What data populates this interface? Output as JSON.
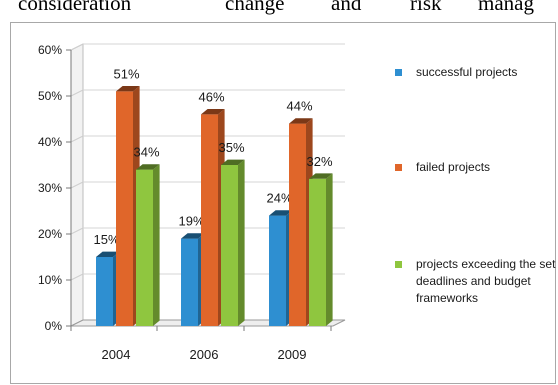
{
  "header_text": {
    "words": [
      "consideration",
      "change",
      "and",
      "risk",
      "manag"
    ]
  },
  "chart_data": {
    "type": "bar",
    "categories": [
      "2004",
      "2006",
      "2009"
    ],
    "series": [
      {
        "name": "successful projects",
        "values": [
          15,
          19,
          24
        ],
        "labels": [
          "15%",
          "19%",
          "24%"
        ],
        "color": "#2e8fd1"
      },
      {
        "name": "failed projects",
        "values": [
          51,
          46,
          44
        ],
        "labels": [
          "51%",
          "46%",
          "44%"
        ],
        "color": "#e0662a"
      },
      {
        "name": "projects exceeding the set deadlines and budget frameworks",
        "values": [
          34,
          35,
          32
        ],
        "labels": [
          "34%",
          "35%",
          "32%"
        ],
        "color": "#8fc63f"
      }
    ],
    "yticks": [
      "0%",
      "10%",
      "20%",
      "30%",
      "40%",
      "50%",
      "60%"
    ],
    "ylim": [
      0,
      60
    ],
    "grid": true,
    "legend": "right",
    "title": "",
    "xlabel": "",
    "ylabel": ""
  }
}
